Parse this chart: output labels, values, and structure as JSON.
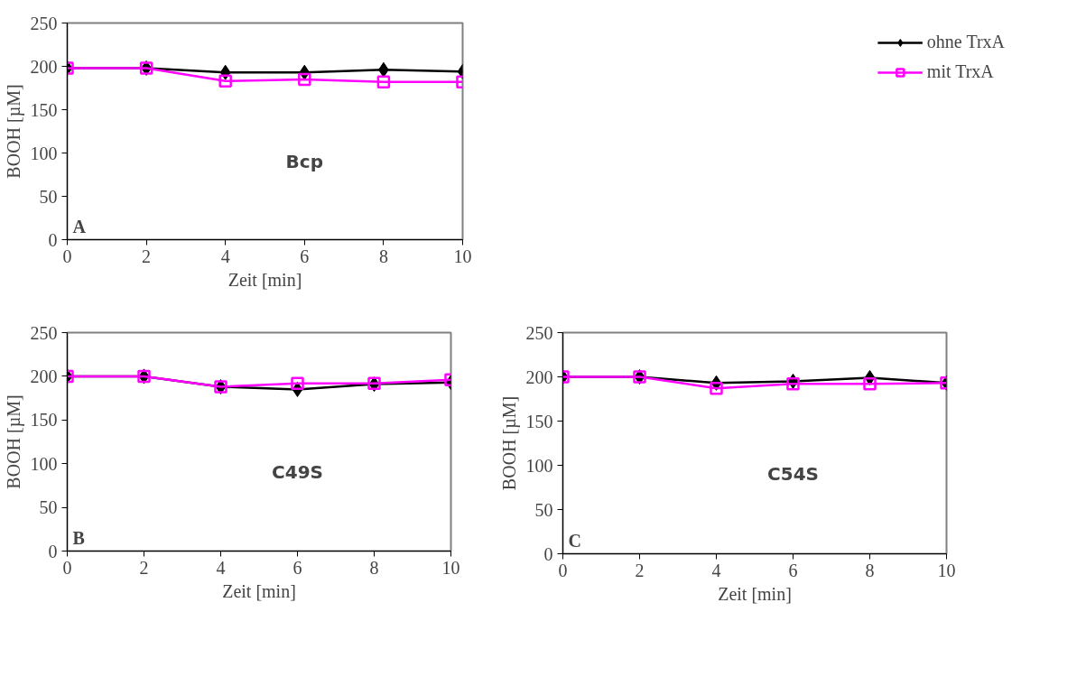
{
  "chart_data": [
    {
      "type": "line",
      "xlabel": "Zeit [min]",
      "ylabel": "BOOH [µM]",
      "x": [
        0,
        2,
        4,
        6,
        8,
        10
      ],
      "xlim": [
        0,
        10
      ],
      "xticks": [
        0,
        2,
        4,
        6,
        8,
        10
      ],
      "ylim": [
        0,
        250
      ],
      "yticks": [
        0,
        50,
        100,
        150,
        200,
        250
      ],
      "grid": false,
      "legend": "right",
      "annotations": [
        "Bcp",
        "A"
      ],
      "series": [
        {
          "name": "ohne TrxA",
          "color": "#000000",
          "marker": "diamond",
          "values": [
            198,
            198,
            193,
            193,
            196,
            194
          ]
        },
        {
          "name": "mit TrxA",
          "color": "#ff00ff",
          "marker": "square",
          "values": [
            198,
            198,
            183,
            185,
            182,
            182
          ]
        }
      ]
    },
    {
      "type": "line",
      "xlabel": "Zeit [min]",
      "ylabel": "BOOH [µM]",
      "x": [
        0,
        2,
        4,
        6,
        8,
        10
      ],
      "xlim": [
        0,
        10
      ],
      "xticks": [
        0,
        2,
        4,
        6,
        8,
        10
      ],
      "ylim": [
        0,
        250
      ],
      "yticks": [
        0,
        50,
        100,
        150,
        200,
        250
      ],
      "grid": false,
      "annotations": [
        "C49S",
        "B"
      ],
      "series": [
        {
          "color": "#000000",
          "marker": "diamond",
          "values": [
            200,
            200,
            188,
            185,
            191,
            193
          ]
        },
        {
          "color": "#ff00ff",
          "marker": "square",
          "values": [
            200,
            200,
            188,
            192,
            192,
            196
          ]
        }
      ]
    },
    {
      "type": "line",
      "xlabel": "Zeit [min]",
      "ylabel": "BOOH [µM]",
      "x": [
        0,
        2,
        4,
        6,
        8,
        10
      ],
      "xlim": [
        0,
        10
      ],
      "xticks": [
        0,
        2,
        4,
        6,
        8,
        10
      ],
      "ylim": [
        0,
        250
      ],
      "yticks": [
        0,
        50,
        100,
        150,
        200,
        250
      ],
      "grid": false,
      "annotations": [
        "C54S",
        "C"
      ],
      "series": [
        {
          "color": "#000000",
          "marker": "diamond",
          "values": [
            200,
            200,
            193,
            195,
            199,
            193
          ]
        },
        {
          "color": "#ff00ff",
          "marker": "square",
          "values": [
            200,
            200,
            187,
            192,
            192,
            193
          ]
        }
      ]
    }
  ]
}
